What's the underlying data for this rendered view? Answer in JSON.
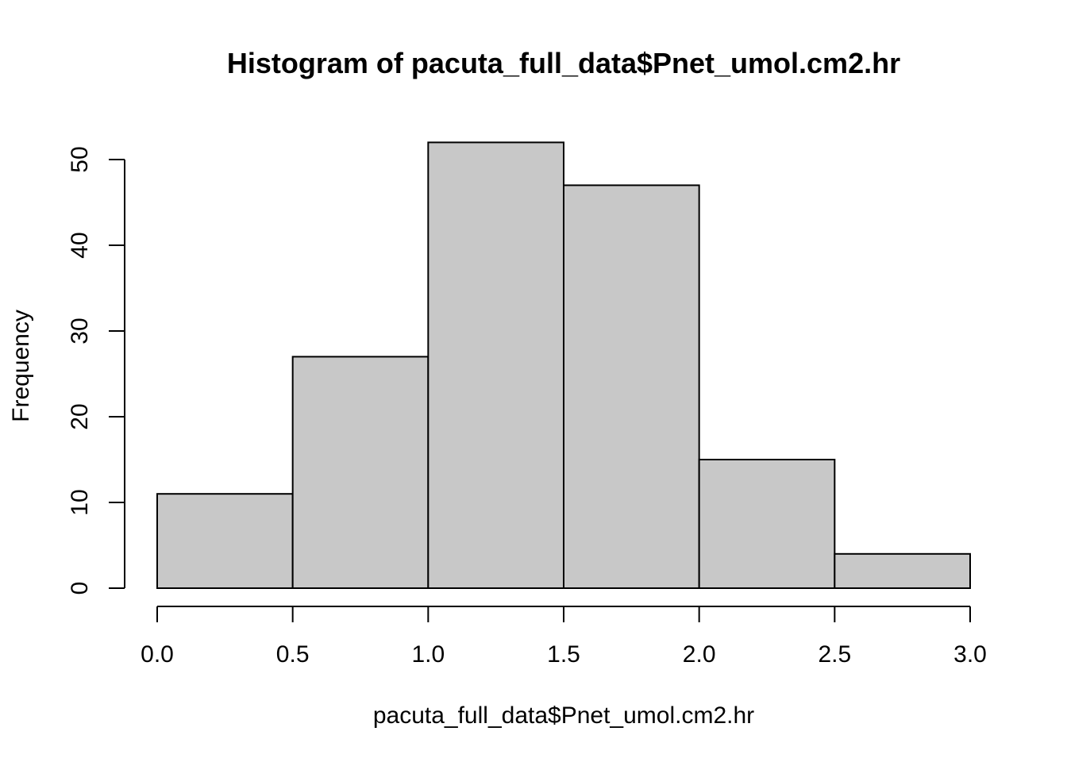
{
  "chart_data": {
    "type": "bar",
    "title": "Histogram of pacuta_full_data$Pnet_umol.cm2.hr",
    "xlabel": "pacuta_full_data$Pnet_umol.cm2.hr",
    "ylabel": "Frequency",
    "bins": [
      {
        "x0": 0.0,
        "x1": 0.5,
        "count": 11
      },
      {
        "x0": 0.5,
        "x1": 1.0,
        "count": 27
      },
      {
        "x0": 1.0,
        "x1": 1.5,
        "count": 52
      },
      {
        "x0": 1.5,
        "x1": 2.0,
        "count": 47
      },
      {
        "x0": 2.0,
        "x1": 2.5,
        "count": 15
      },
      {
        "x0": 2.5,
        "x1": 3.0,
        "count": 4
      }
    ],
    "xlim": [
      0.0,
      3.0
    ],
    "ylim": [
      0,
      52
    ],
    "x_ticks": [
      "0.0",
      "0.5",
      "1.0",
      "1.5",
      "2.0",
      "2.5",
      "3.0"
    ],
    "y_ticks": [
      "0",
      "10",
      "20",
      "30",
      "40",
      "50"
    ],
    "bar_fill": "#c8c8c8",
    "bar_stroke": "#000000",
    "grid": false,
    "legend": "none"
  }
}
